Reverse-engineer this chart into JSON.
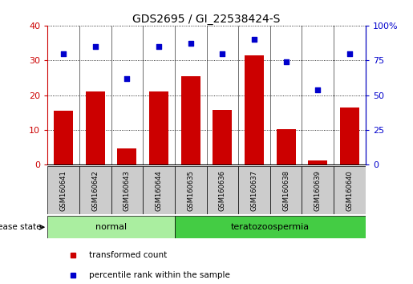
{
  "title": "GDS2695 / GI_22538424-S",
  "samples": [
    "GSM160641",
    "GSM160642",
    "GSM160643",
    "GSM160644",
    "GSM160635",
    "GSM160636",
    "GSM160637",
    "GSM160638",
    "GSM160639",
    "GSM160640"
  ],
  "transformed_counts": [
    15.5,
    21.0,
    4.8,
    21.0,
    25.5,
    15.8,
    31.5,
    10.3,
    1.2,
    16.5
  ],
  "percentile_ranks": [
    80,
    85,
    62,
    85,
    87,
    80,
    90,
    74,
    54,
    80
  ],
  "bar_color": "#cc0000",
  "dot_color": "#0000cc",
  "left_ylim": [
    0,
    40
  ],
  "right_ylim": [
    0,
    100
  ],
  "left_yticks": [
    0,
    10,
    20,
    30,
    40
  ],
  "right_yticks": [
    0,
    25,
    50,
    75,
    100
  ],
  "left_yticklabels": [
    "0",
    "10",
    "20",
    "30",
    "40"
  ],
  "right_yticklabels": [
    "0",
    "25",
    "50",
    "75",
    "100%"
  ],
  "grid_color": "black",
  "background_color": "#ffffff",
  "tick_label_bg": "#cccccc",
  "normal_bg": "#aaeea0",
  "terato_bg": "#44cc44",
  "group_configs": [
    {
      "start": 0,
      "end": 3,
      "label": "normal"
    },
    {
      "start": 4,
      "end": 9,
      "label": "teratozoospermia"
    }
  ],
  "disease_state_label": "disease state",
  "legend_items": [
    {
      "label": "transformed count",
      "color": "#cc0000"
    },
    {
      "label": "percentile rank within the sample",
      "color": "#0000cc"
    }
  ],
  "title_fontsize": 10,
  "axis_fontsize": 8,
  "sample_fontsize": 6,
  "group_fontsize": 8
}
